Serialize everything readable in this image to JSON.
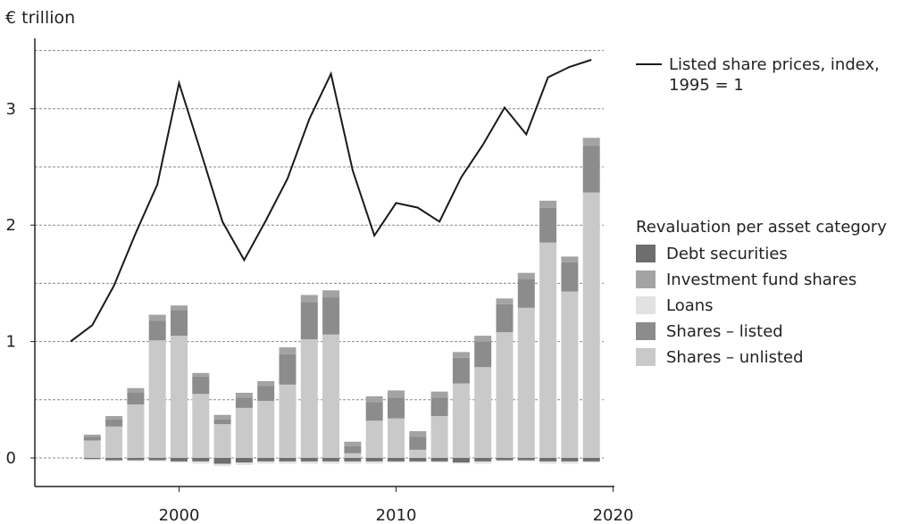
{
  "chart_data": {
    "type": "bar",
    "ylabel": "€ trillion",
    "ylim": [
      -0.25,
      3.5
    ],
    "xlim": [
      1994,
      2020
    ],
    "yticks": [
      0,
      1,
      2,
      3
    ],
    "ytick_labels": [
      "0",
      "1",
      "2",
      "3"
    ],
    "xticks": [
      2000,
      2010,
      2020
    ],
    "xtick_labels": [
      "2000",
      "2010",
      "2020"
    ],
    "grid": "dashed horizontal every 0.5",
    "stacked": true,
    "categories": [
      1996,
      1997,
      1998,
      1999,
      2000,
      2001,
      2002,
      2003,
      2004,
      2005,
      2006,
      2007,
      2008,
      2009,
      2010,
      2011,
      2012,
      2013,
      2014,
      2015,
      2016,
      2017,
      2018,
      2019
    ],
    "legend_title": "Revaluation per asset category",
    "legend_position": "right",
    "series": [
      {
        "name": "Debt securities",
        "color": "#6e6e6e",
        "values": [
          -0.01,
          -0.02,
          -0.02,
          -0.02,
          -0.03,
          -0.03,
          -0.05,
          -0.04,
          -0.03,
          -0.03,
          -0.03,
          -0.03,
          -0.03,
          -0.03,
          -0.03,
          -0.03,
          -0.03,
          -0.04,
          -0.03,
          -0.02,
          -0.02,
          -0.03,
          -0.03,
          -0.03
        ]
      },
      {
        "name": "Investment fund shares",
        "color": "#a3a3a3",
        "values": [
          0.02,
          0.03,
          0.04,
          0.05,
          0.04,
          0.03,
          0.04,
          0.04,
          0.04,
          0.06,
          0.06,
          0.06,
          0.04,
          0.05,
          0.06,
          0.05,
          0.05,
          0.05,
          0.05,
          0.05,
          0.05,
          0.06,
          0.05,
          0.07
        ]
      },
      {
        "name": "Loans",
        "color": "#e2e2e2",
        "values": [
          -0.01,
          -0.01,
          -0.01,
          -0.01,
          -0.01,
          -0.02,
          -0.02,
          -0.02,
          -0.02,
          -0.02,
          -0.02,
          -0.02,
          -0.02,
          -0.02,
          -0.01,
          -0.01,
          -0.01,
          -0.01,
          -0.02,
          -0.01,
          -0.01,
          -0.02,
          -0.02,
          -0.01
        ]
      },
      {
        "name": "Shares – listed",
        "color": "#8c8c8c",
        "values": [
          0.03,
          0.06,
          0.1,
          0.17,
          0.22,
          0.15,
          0.04,
          0.09,
          0.13,
          0.26,
          0.32,
          0.32,
          0.06,
          0.16,
          0.18,
          0.11,
          0.16,
          0.22,
          0.22,
          0.24,
          0.25,
          0.3,
          0.25,
          0.4
        ]
      },
      {
        "name": "Shares – unlisted",
        "color": "#c9c9c9",
        "values": [
          0.15,
          0.27,
          0.46,
          1.01,
          1.05,
          0.55,
          0.29,
          0.43,
          0.49,
          0.63,
          1.02,
          1.06,
          0.04,
          0.32,
          0.34,
          0.07,
          0.36,
          0.64,
          0.78,
          1.08,
          1.29,
          1.85,
          1.43,
          2.28
        ]
      }
    ],
    "line": {
      "name": "Listed share prices, index, 1995 = 1",
      "color": "#1a1a1a",
      "x": [
        1995,
        1996,
        1997,
        1998,
        1999,
        2000,
        2001,
        2002,
        2003,
        2004,
        2005,
        2006,
        2007,
        2008,
        2009,
        2010,
        2011,
        2012,
        2013,
        2014,
        2015,
        2016,
        2017,
        2018,
        2019
      ],
      "y": [
        1.0,
        1.14,
        1.48,
        1.93,
        2.35,
        3.22,
        2.63,
        2.03,
        1.7,
        2.04,
        2.4,
        2.91,
        3.3,
        2.47,
        1.91,
        2.19,
        2.15,
        2.03,
        2.41,
        2.69,
        3.01,
        2.78,
        3.27,
        3.36,
        3.42
      ]
    }
  }
}
